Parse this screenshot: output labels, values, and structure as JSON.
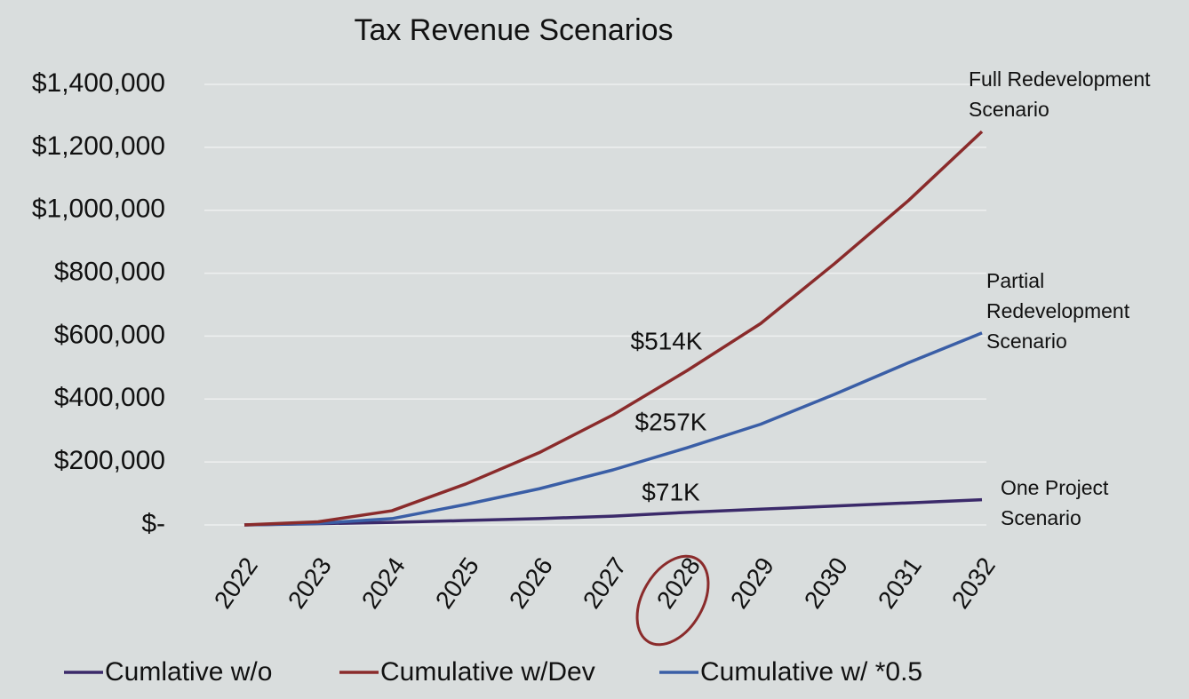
{
  "chart_data": {
    "type": "line",
    "title": "Tax Revenue Scenarios",
    "categories": [
      "2022",
      "2023",
      "2024",
      "2025",
      "2026",
      "2027",
      "2028",
      "2029",
      "2030",
      "2031",
      "2032"
    ],
    "series": [
      {
        "name": "Cumlative w/o",
        "color": "#3b2a6a",
        "values": [
          0,
          4000,
          8000,
          14000,
          20000,
          28000,
          40000,
          50000,
          60000,
          70000,
          80000
        ]
      },
      {
        "name": "Cumulative w/Dev",
        "color": "#8a2b2b",
        "values": [
          0,
          10000,
          45000,
          130000,
          230000,
          350000,
          490000,
          640000,
          830000,
          1030000,
          1250000
        ]
      },
      {
        "name": "Cumulative w/ *0.5",
        "color": "#3a5ea6",
        "values": [
          0,
          5000,
          20000,
          65000,
          115000,
          175000,
          245000,
          320000,
          415000,
          515000,
          610000
        ]
      }
    ],
    "ylim": [
      0,
      1400000
    ],
    "yticks": [
      {
        "value": 0,
        "label": "$-"
      },
      {
        "value": 200000,
        "label": "$200,000"
      },
      {
        "value": 400000,
        "label": "$400,000"
      },
      {
        "value": 600000,
        "label": "$600,000"
      },
      {
        "value": 800000,
        "label": "$800,000"
      },
      {
        "value": 1000000,
        "label": "$1,000,000"
      },
      {
        "value": 1200000,
        "label": "$1,200,000"
      },
      {
        "value": 1400000,
        "label": "$1,400,000"
      }
    ],
    "grid": true,
    "legend": "bottom",
    "annotations": [
      "$514K",
      "$257K",
      "$71K"
    ],
    "scenario_labels": [
      [
        "Full Redevelopment",
        "Scenario"
      ],
      [
        "Partial",
        "Redevelopment",
        "Scenario"
      ],
      [
        "One Project",
        "Scenario"
      ]
    ]
  }
}
